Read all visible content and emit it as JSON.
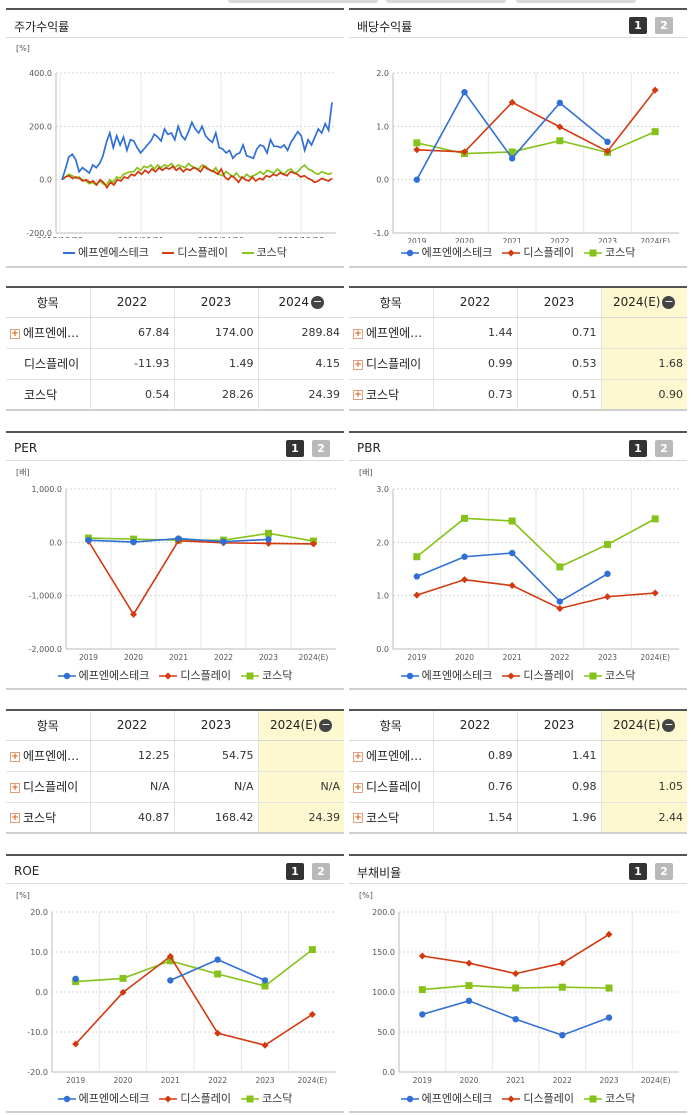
{
  "legend_names": [
    "에프엔에스테크",
    "디스플레이",
    "코스닥"
  ],
  "series_colors": [
    "#2f6fd6",
    "#d3380f",
    "#86c21a"
  ],
  "table_header": "항목",
  "buttons": [
    "1",
    "2"
  ],
  "charts": {
    "price": {
      "title": "주가수익률",
      "unit": "[%]",
      "chart_data": {
        "type": "line",
        "x_ticks": [
          "2018/12/28",
          "2020/08/31",
          "2022/04/29",
          "2023/12/28"
        ],
        "yticks": [
          "400.0",
          "200.0",
          "0.0",
          "-200.0"
        ],
        "ylim": [
          -200,
          400
        ],
        "series": [
          {
            "name": "에프엔에스테크",
            "values": [
              0,
              40,
              85,
              95,
              75,
              30,
              45,
              35,
              25,
              55,
              45,
              60,
              90,
              140,
              175,
              120,
              165,
              130,
              160,
              110,
              150,
              145,
              120,
              100,
              115,
              130,
              145,
              170,
              160,
              145,
              190,
              170,
              175,
              150,
              200,
              165,
              150,
              180,
              215,
              190,
              175,
              200,
              165,
              150,
              140,
              175,
              120,
              115,
              100,
              110,
              80,
              95,
              100,
              130,
              90,
              85,
              80,
              115,
              130,
              125,
              100,
              150,
              125,
              125,
              120,
              130,
              110,
              140,
              160,
              180,
              165,
              110,
              150,
              130,
              160,
              190,
              175,
              210,
              185,
              290
            ]
          },
          {
            "name": "디스플레이",
            "values": [
              0,
              10,
              15,
              5,
              10,
              5,
              -5,
              0,
              -10,
              -5,
              -20,
              0,
              -10,
              -30,
              -10,
              -20,
              0,
              -5,
              10,
              5,
              20,
              15,
              30,
              20,
              35,
              25,
              40,
              30,
              45,
              35,
              45,
              40,
              50,
              35,
              45,
              30,
              40,
              35,
              45,
              40,
              30,
              50,
              40,
              35,
              30,
              20,
              40,
              10,
              0,
              15,
              5,
              -10,
              10,
              0,
              -5,
              10,
              -5,
              5,
              0,
              15,
              10,
              20,
              15,
              25,
              20,
              15,
              30,
              25,
              20,
              10,
              15,
              5,
              0,
              -10,
              -5,
              5,
              0,
              -5,
              5
            ]
          },
          {
            "name": "코스닥",
            "values": [
              0,
              10,
              20,
              15,
              5,
              10,
              0,
              -5,
              -15,
              -10,
              -20,
              -5,
              -15,
              -20,
              0,
              -10,
              10,
              5,
              20,
              25,
              30,
              30,
              45,
              35,
              50,
              45,
              55,
              40,
              55,
              45,
              55,
              50,
              60,
              45,
              55,
              50,
              45,
              60,
              50,
              45,
              40,
              55,
              50,
              40,
              30,
              45,
              20,
              15,
              30,
              20,
              10,
              25,
              10,
              5,
              20,
              10,
              15,
              20,
              30,
              20,
              35,
              30,
              25,
              40,
              30,
              20,
              35,
              40,
              25,
              30,
              45,
              55,
              40,
              35,
              25,
              20,
              30,
              25,
              20,
              25
            ]
          }
        ]
      }
    },
    "dividend": {
      "title": "배당수익률",
      "chart_data": {
        "type": "line",
        "categories": [
          "2019",
          "2020",
          "2021",
          "2022",
          "2023",
          "2024(E)"
        ],
        "yticks": [
          "2.0",
          "1.0",
          "0.0",
          "-1.0"
        ],
        "ylim": [
          -1,
          2
        ],
        "series": [
          {
            "name": "에프엔에스테크",
            "values": [
              0.0,
              1.64,
              0.4,
              1.44,
              0.71,
              null
            ]
          },
          {
            "name": "디스플레이",
            "values": [
              0.56,
              0.52,
              1.45,
              0.99,
              0.53,
              1.68
            ]
          },
          {
            "name": "코스닥",
            "values": [
              0.69,
              0.49,
              0.52,
              0.73,
              0.51,
              0.9
            ]
          }
        ]
      }
    },
    "per": {
      "title": "PER",
      "unit": "[배]",
      "chart_data": {
        "type": "line",
        "categories": [
          "2019",
          "2020",
          "2021",
          "2022",
          "2023",
          "2024(E)"
        ],
        "yticks": [
          "1,000.0",
          "0.0",
          "-1,000.0",
          "-2,000.0"
        ],
        "ylim": [
          -2000,
          1000
        ],
        "series": [
          {
            "name": "에프엔에스테크",
            "values": [
              40,
              5,
              70,
              12.25,
              54.75,
              null
            ]
          },
          {
            "name": "디스플레이",
            "values": [
              20,
              -1350,
              30,
              -10,
              -20,
              -30
            ]
          },
          {
            "name": "코스닥",
            "values": [
              80,
              60,
              40,
              40.87,
              168.42,
              24.39
            ]
          }
        ]
      }
    },
    "pbr": {
      "title": "PBR",
      "unit": "[배]",
      "chart_data": {
        "type": "line",
        "categories": [
          "2019",
          "2020",
          "2021",
          "2022",
          "2023",
          "2024(E)"
        ],
        "yticks": [
          "3.0",
          "2.0",
          "1.0",
          "0.0"
        ],
        "ylim": [
          0,
          3
        ],
        "series": [
          {
            "name": "에프엔에스테크",
            "values": [
              1.36,
              1.73,
              1.8,
              0.89,
              1.41,
              null
            ]
          },
          {
            "name": "디스플레이",
            "values": [
              1.01,
              1.3,
              1.19,
              0.76,
              0.98,
              1.05
            ]
          },
          {
            "name": "코스닥",
            "values": [
              1.73,
              2.45,
              2.4,
              1.54,
              1.96,
              2.44
            ]
          }
        ]
      }
    },
    "roe": {
      "title": "ROE",
      "unit": "[%]",
      "chart_data": {
        "type": "line",
        "categories": [
          "2019",
          "2020",
          "2021",
          "2022",
          "2023",
          "2024(E)"
        ],
        "yticks": [
          "20.0",
          "10.0",
          "0.0",
          "-10.0",
          "-20.0"
        ],
        "ylim": [
          -20,
          20
        ],
        "series": [
          {
            "name": "에프엔에스테크",
            "values": [
              3.3,
              null,
              2.9,
              8.1,
              2.9,
              null
            ]
          },
          {
            "name": "디스플레이",
            "values": [
              -13.0,
              -0.1,
              8.9,
              -10.3,
              -13.3,
              -5.6
            ]
          },
          {
            "name": "코스닥",
            "values": [
              2.6,
              3.4,
              7.8,
              4.5,
              1.5,
              10.6
            ]
          }
        ]
      }
    },
    "debt": {
      "title": "부채비율",
      "unit": "[%]",
      "chart_data": {
        "type": "line",
        "categories": [
          "2019",
          "2020",
          "2021",
          "2022",
          "2023",
          "2024(E)"
        ],
        "yticks": [
          "200.0",
          "150.0",
          "100.0",
          "50.0",
          "0.0"
        ],
        "ylim": [
          0,
          200
        ],
        "series": [
          {
            "name": "에프엔에스테크",
            "values": [
              72,
              89,
              66,
              46,
              68,
              null
            ]
          },
          {
            "name": "디스플레이",
            "values": [
              145,
              136,
              123,
              136,
              172,
              null
            ]
          },
          {
            "name": "코스닥",
            "values": [
              103,
              108,
              105,
              106,
              105,
              null
            ]
          }
        ]
      }
    }
  },
  "tables": {
    "price": {
      "cols": [
        "2022",
        "2023",
        "2024"
      ],
      "rows": [
        {
          "name": "에프엔에…",
          "vals": [
            "67.84",
            "174.00",
            "289.84"
          ]
        },
        {
          "name": "디스플레이",
          "vals": [
            "-11.93",
            "1.49",
            "4.15"
          ]
        },
        {
          "name": "코스닥",
          "vals": [
            "0.54",
            "28.26",
            "24.39"
          ]
        }
      ]
    },
    "dividend": {
      "cols": [
        "2022",
        "2023",
        "2024(E)"
      ],
      "rows": [
        {
          "name": "에프엔에…",
          "vals": [
            "1.44",
            "0.71",
            ""
          ]
        },
        {
          "name": "디스플레이",
          "vals": [
            "0.99",
            "0.53",
            "1.68"
          ]
        },
        {
          "name": "코스닥",
          "vals": [
            "0.73",
            "0.51",
            "0.90"
          ]
        }
      ]
    },
    "per": {
      "cols": [
        "2022",
        "2023",
        "2024(E)"
      ],
      "rows": [
        {
          "name": "에프엔에…",
          "vals": [
            "12.25",
            "54.75",
            ""
          ]
        },
        {
          "name": "디스플레이",
          "vals": [
            "N/A",
            "N/A",
            "N/A"
          ]
        },
        {
          "name": "코스닥",
          "vals": [
            "40.87",
            "168.42",
            "24.39"
          ]
        }
      ]
    },
    "pbr": {
      "cols": [
        "2022",
        "2023",
        "2024(E)"
      ],
      "rows": [
        {
          "name": "에프엔에…",
          "vals": [
            "0.89",
            "1.41",
            ""
          ]
        },
        {
          "name": "디스플레이",
          "vals": [
            "0.76",
            "0.98",
            "1.05"
          ]
        },
        {
          "name": "코스닥",
          "vals": [
            "1.54",
            "1.96",
            "2.44"
          ]
        }
      ]
    }
  }
}
